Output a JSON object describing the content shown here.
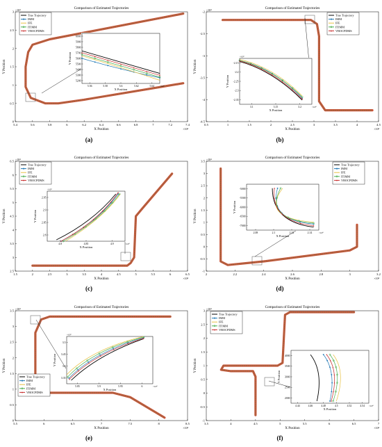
{
  "colors": {
    "true": "#000000",
    "imm": "#1f77b4",
    "ife": "#e8c040",
    "itimm": "#4caf50",
    "vbocpdms": "#c62828",
    "trail": "#c9553a",
    "trail_marker": "#4a8a4a"
  },
  "legend": [
    "True Trajectory",
    "IMM",
    "IFE",
    "ITIMM",
    "VBOCPDMS"
  ],
  "chart_data": [
    {
      "id": "a",
      "caption": "(a)",
      "type": "line",
      "title": "Comparison of Estimated Trajectories",
      "xlabel": "X Position",
      "ylabel": "Y Position",
      "xexp": "×10⁴",
      "yexp": "×10⁴",
      "xlim": [
        5.4,
        7.4
      ],
      "ylim": [
        0,
        3
      ],
      "xticks": [
        "5.4",
        "5.6",
        "5.8",
        "6",
        "6.2",
        "6.4",
        "6.6",
        "6.8",
        "7",
        "7.2",
        "7.4"
      ],
      "yticks": [
        "0",
        "0.5",
        "1",
        "1.5",
        "2",
        "2.5",
        "3"
      ],
      "path": [
        [
          7.35,
          2.95
        ],
        [
          5.8,
          2.25
        ],
        [
          5.6,
          2.1
        ],
        [
          5.55,
          1.9
        ],
        [
          5.52,
          1.5
        ],
        [
          5.52,
          0.95
        ],
        [
          5.58,
          0.65
        ],
        [
          5.75,
          0.5
        ],
        [
          5.9,
          0.5
        ],
        [
          6.2,
          0.6
        ],
        [
          7.35,
          1.05
        ]
      ],
      "legend_loc": "top-left",
      "inset": {
        "xticks": [
          "5.56",
          "5.58",
          "5.6",
          "5.62",
          "5.64"
        ],
        "yticks": [
          "5200",
          "5300",
          "5400",
          "5500",
          "5600",
          "5700",
          "5800",
          "5900",
          "6000"
        ],
        "xexp": "×10⁴",
        "xlabel": "X Position",
        "ylabel": "Y Position",
        "xlim": [
          5.56,
          5.64
        ],
        "ylim": [
          5200,
          6000
        ],
        "series": [
          {
            "name": "True Trajectory",
            "points": [
              [
                5.56,
                5720
              ],
              [
                5.6,
                5540
              ],
              [
                5.64,
                5360
              ]
            ]
          },
          {
            "name": "IMM",
            "points": [
              [
                5.56,
                5600
              ],
              [
                5.6,
                5420
              ],
              [
                5.64,
                5290
              ]
            ]
          },
          {
            "name": "IFE",
            "points": [
              [
                5.56,
                5640
              ],
              [
                5.6,
                5460
              ],
              [
                5.64,
                5250
              ]
            ]
          },
          {
            "name": "ITIMM",
            "points": [
              [
                5.56,
                5660
              ],
              [
                5.6,
                5480
              ],
              [
                5.64,
                5300
              ]
            ]
          },
          {
            "name": "VBOCPDMS",
            "points": [
              [
                5.56,
                5690
              ],
              [
                5.6,
                5510
              ],
              [
                5.64,
                5330
              ]
            ]
          }
        ]
      }
    },
    {
      "id": "b",
      "caption": "(b)",
      "type": "line",
      "title": "Comparison of Estimated Trajectories",
      "xlabel": "X Position",
      "ylabel": "Y Position",
      "xexp": "×10⁴",
      "yexp": "×10⁴",
      "xlim": [
        0.5,
        4.7
      ],
      "ylim": [
        -4.5,
        -1.8
      ],
      "xticks": [
        "0.5",
        "1",
        "1.5",
        "2",
        "2.5",
        "3",
        "3.5",
        "4",
        "4.5"
      ],
      "yticks": [
        "-4.5",
        "-4",
        "-3.5",
        "-3",
        "-2.5",
        "-2"
      ],
      "path": [
        [
          0.9,
          -2.0
        ],
        [
          3.05,
          -2.0
        ],
        [
          3.2,
          -2.1
        ],
        [
          3.25,
          -2.4
        ],
        [
          3.25,
          -4.0
        ],
        [
          3.4,
          -4.22
        ],
        [
          4.55,
          -4.22
        ]
      ],
      "legend_loc": "top-right",
      "inset": {
        "xticks": [
          "3.1",
          "3.15",
          "3.2"
        ],
        "yticks": [
          "-2.35",
          "-2.3",
          "-2.25",
          "-2.2",
          "-2.15"
        ],
        "xexp": "×10⁴",
        "yexp": "×10⁴",
        "xlabel": "X Position",
        "ylabel": "Y Position",
        "xlim": [
          3.08,
          3.23
        ],
        "ylim": [
          -2.36,
          -2.14
        ],
        "series": [
          {
            "name": "True Trajectory",
            "points": [
              [
                3.08,
                -2.155
              ],
              [
                3.15,
                -2.2
              ],
              [
                3.21,
                -2.34
              ]
            ]
          },
          {
            "name": "IMM",
            "points": [
              [
                3.08,
                -2.15
              ],
              [
                3.15,
                -2.185
              ],
              [
                3.21,
                -2.33
              ]
            ]
          },
          {
            "name": "IFE",
            "points": [
              [
                3.08,
                -2.145
              ],
              [
                3.15,
                -2.18
              ],
              [
                3.21,
                -2.32
              ]
            ]
          },
          {
            "name": "ITIMM",
            "points": [
              [
                3.08,
                -2.15
              ],
              [
                3.15,
                -2.19
              ],
              [
                3.21,
                -2.325
              ]
            ]
          },
          {
            "name": "VBOCPDMS",
            "points": [
              [
                3.08,
                -2.152
              ],
              [
                3.15,
                -2.195
              ],
              [
                3.21,
                -2.335
              ]
            ]
          }
        ]
      }
    },
    {
      "id": "c",
      "caption": "(c)",
      "type": "line",
      "title": "Comparison of Estimated Trajectories",
      "xlabel": "X Position",
      "ylabel": "Y Position",
      "xexp": "×10⁴",
      "yexp": "×10⁴",
      "xlim": [
        1.5,
        6.5
      ],
      "ylim": [
        2.5,
        6.5
      ],
      "xticks": [
        "1.5",
        "2",
        "2.5",
        "3",
        "3.5",
        "4",
        "4.5",
        "5",
        "5.5",
        "6",
        "6.5"
      ],
      "yticks": [
        "2.5",
        "3",
        "3.5",
        "4",
        "4.5",
        "5",
        "5.5",
        "6",
        "6.5"
      ],
      "path": [
        [
          2.0,
          2.7
        ],
        [
          4.75,
          2.7
        ],
        [
          4.85,
          2.8
        ],
        [
          4.95,
          3.0
        ],
        [
          5.0,
          4.5
        ],
        [
          5.2,
          4.8
        ],
        [
          6.05,
          6.05
        ]
      ],
      "legend_loc": "top-left",
      "inset": {
        "xticks": [
          "4.8",
          "4.85",
          "4.9"
        ],
        "yticks": [
          "2.8",
          "2.85",
          "2.9",
          "2.95"
        ],
        "xexp": "×10⁴",
        "yexp": "×10⁴",
        "xlabel": "X Position",
        "ylabel": "Y Position",
        "xlim": [
          4.76,
          4.93
        ],
        "ylim": [
          2.78,
          2.96
        ],
        "series": [
          {
            "name": "True Trajectory",
            "points": [
              [
                4.78,
                2.785
              ],
              [
                4.86,
                2.85
              ],
              [
                4.91,
                2.95
              ]
            ]
          },
          {
            "name": "IMM",
            "points": [
              [
                4.79,
                2.78
              ],
              [
                4.87,
                2.85
              ],
              [
                4.915,
                2.95
              ]
            ]
          },
          {
            "name": "IFE",
            "points": [
              [
                4.8,
                2.78
              ],
              [
                4.88,
                2.86
              ],
              [
                4.92,
                2.95
              ]
            ]
          },
          {
            "name": "ITIMM",
            "points": [
              [
                4.795,
                2.78
              ],
              [
                4.875,
                2.855
              ],
              [
                4.918,
                2.95
              ]
            ]
          },
          {
            "name": "VBOCPDMS",
            "points": [
              [
                4.79,
                2.78
              ],
              [
                4.87,
                2.85
              ],
              [
                4.915,
                2.955
              ]
            ]
          }
        ]
      }
    },
    {
      "id": "d",
      "caption": "(d)",
      "type": "line",
      "title": "Comparison of Estimated Trajectories",
      "xlabel": "X Position",
      "ylabel": "Y Position",
      "xexp": "×10⁴",
      "yexp": "×10⁴",
      "xlim": [
        2.0,
        3.2
      ],
      "ylim": [
        -1.0,
        3.5
      ],
      "xticks": [
        "2",
        "2.2",
        "2.4",
        "2.6",
        "2.8",
        "3",
        "3.2"
      ],
      "yticks": [
        "-1",
        "-0.5",
        "0",
        "0.5",
        "1",
        "1.5",
        "2",
        "2.5",
        "3",
        "3.5"
      ],
      "path": [
        [
          2.1,
          3.2
        ],
        [
          2.1,
          -0.6
        ],
        [
          2.15,
          -0.75
        ],
        [
          2.4,
          -0.6
        ],
        [
          3.0,
          -0.15
        ],
        [
          3.05,
          0.0
        ],
        [
          3.05,
          0.9
        ]
      ],
      "legend_loc": "top-right",
      "inset": {
        "xticks": [
          "2.08",
          "2.1",
          "2.12",
          "2.14"
        ],
        "yticks": [
          "-7000",
          "-6500",
          "-6000",
          "-5500",
          "-5000"
        ],
        "xexp": "×10⁴",
        "xlabel": "X Position",
        "ylabel": "Y Position",
        "xlim": [
          2.075,
          2.145
        ],
        "ylim": [
          -7100,
          -4800
        ],
        "series": [
          {
            "name": "True Trajectory",
            "points": [
              [
                2.1,
                -5000
              ],
              [
                2.1,
                -6700
              ],
              [
                2.14,
                -6950
              ]
            ]
          },
          {
            "name": "IMM",
            "points": [
              [
                2.105,
                -5000
              ],
              [
                2.096,
                -6600
              ],
              [
                2.14,
                -6800
              ]
            ]
          },
          {
            "name": "IFE",
            "points": [
              [
                2.11,
                -5000
              ],
              [
                2.088,
                -6500
              ],
              [
                2.14,
                -6700
              ]
            ]
          },
          {
            "name": "ITIMM",
            "points": [
              [
                2.108,
                -5000
              ],
              [
                2.092,
                -6550
              ],
              [
                2.14,
                -6750
              ]
            ]
          },
          {
            "name": "VBOCPDMS",
            "points": [
              [
                2.102,
                -5000
              ],
              [
                2.098,
                -6650
              ],
              [
                2.14,
                -6880
              ]
            ]
          }
        ]
      }
    },
    {
      "id": "e",
      "caption": "(e)",
      "type": "line",
      "title": "Comparison of Estimated Trajectories",
      "xlabel": "X Position",
      "ylabel": "Y Position",
      "xexp": "×10⁴",
      "yexp": "×10⁴",
      "xlim": [
        5.5,
        8.5
      ],
      "ylim": [
        0,
        3.75
      ],
      "xticks": [
        "5.5",
        "6",
        "6.5",
        "7",
        "7.5",
        "8",
        "8.5"
      ],
      "yticks": [
        "0",
        "0.5",
        "1",
        "1.5",
        "2",
        "2.5",
        "3",
        "3.5"
      ],
      "path": [
        [
          8.2,
          3.55
        ],
        [
          6.1,
          3.55
        ],
        [
          5.95,
          3.45
        ],
        [
          5.85,
          3.0
        ],
        [
          5.85,
          1.2
        ],
        [
          6.0,
          0.95
        ],
        [
          7.2,
          0.95
        ],
        [
          7.5,
          0.8
        ],
        [
          8.1,
          0.1
        ]
      ],
      "legend_loc": "bottom-left",
      "inset": {
        "xticks": [
          "5.85",
          "5.9",
          "5.95",
          "6"
        ],
        "yticks": [
          "3.35",
          "3.4",
          "3.45",
          "3.5"
        ],
        "xexp": "×10⁴",
        "yexp": "×10⁴",
        "xlabel": "X Position",
        "ylabel": "Y Position",
        "xlim": [
          5.83,
          6.02
        ],
        "ylim": [
          3.32,
          3.53
        ],
        "series": [
          {
            "name": "True Trajectory",
            "points": [
              [
                5.84,
                3.335
              ],
              [
                5.9,
                3.45
              ],
              [
                6.0,
                3.52
              ]
            ]
          },
          {
            "name": "IMM",
            "points": [
              [
                5.835,
                3.345
              ],
              [
                5.89,
                3.46
              ],
              [
                6.0,
                3.525
              ]
            ]
          },
          {
            "name": "IFE",
            "points": [
              [
                5.83,
                3.36
              ],
              [
                5.885,
                3.475
              ],
              [
                6.0,
                3.53
              ]
            ]
          },
          {
            "name": "ITIMM",
            "points": [
              [
                5.832,
                3.35
              ],
              [
                5.888,
                3.47
              ],
              [
                6.0,
                3.527
              ]
            ]
          },
          {
            "name": "VBOCPDMS",
            "points": [
              [
                5.836,
                3.34
              ],
              [
                5.892,
                3.455
              ],
              [
                6.0,
                3.522
              ]
            ]
          }
        ]
      }
    },
    {
      "id": "f",
      "caption": "(f)",
      "type": "line",
      "title": "Comparison of Estimated Trajectories",
      "xlabel": "X Position",
      "ylabel": "Y Position",
      "xexp": "×10⁴",
      "yexp": "×10⁴",
      "xlim": [
        3.5,
        7.0
      ],
      "ylim": [
        -1.0,
        3.0
      ],
      "xticks": [
        "3.5",
        "4",
        "4.5",
        "5",
        "5.5",
        "6",
        "6.5",
        "7"
      ],
      "yticks": [
        "-1",
        "-0.5",
        "0",
        "0.5",
        "1",
        "1.5",
        "2",
        "2.5",
        "3"
      ],
      "path": [
        [
          6.5,
          2.95
        ],
        [
          5.2,
          2.95
        ],
        [
          5.1,
          2.85
        ],
        [
          5.05,
          1.1
        ],
        [
          4.95,
          1.0
        ],
        [
          3.85,
          1.0
        ],
        [
          3.8,
          0.85
        ],
        [
          4.0,
          0.8
        ],
        [
          4.45,
          0.8
        ],
        [
          4.5,
          0.6
        ],
        [
          4.5,
          -0.8
        ]
      ],
      "legend_loc": "top-left",
      "inset": {
        "xticks": [
          "4.44",
          "4.46",
          "4.48",
          "4.5",
          "4.52",
          "4.54"
        ],
        "yticks": [
          "2000",
          "2500",
          "3000",
          "3500",
          "4000"
        ],
        "xexp": "×10⁴",
        "xlabel": "X Position",
        "ylabel": "Y Position",
        "xlim": [
          4.43,
          4.55
        ],
        "ylim": [
          1800,
          4300
        ],
        "series": [
          {
            "name": "True Trajectory",
            "points": [
              [
                4.46,
                4100
              ],
              [
                4.48,
                3300
              ],
              [
                4.47,
                1900
              ]
            ]
          },
          {
            "name": "IMM",
            "points": [
              [
                4.48,
                4100
              ],
              [
                4.5,
                3300
              ],
              [
                4.49,
                1900
              ]
            ]
          },
          {
            "name": "IFE",
            "points": [
              [
                4.495,
                4100
              ],
              [
                4.515,
                3300
              ],
              [
                4.5,
                1900
              ]
            ]
          },
          {
            "name": "ITIMM",
            "points": [
              [
                4.49,
                4100
              ],
              [
                4.51,
                3300
              ],
              [
                4.495,
                1900
              ]
            ]
          },
          {
            "name": "VBOCPDMS",
            "points": [
              [
                4.485,
                4100
              ],
              [
                4.505,
                3300
              ],
              [
                4.492,
                1900
              ]
            ]
          }
        ]
      }
    }
  ]
}
